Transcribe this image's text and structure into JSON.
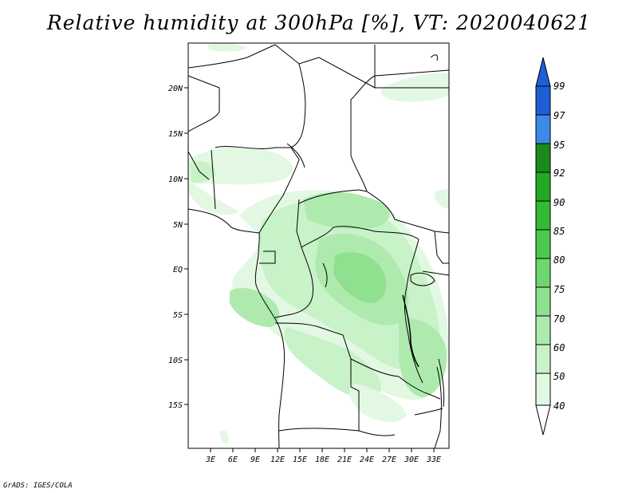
{
  "title": "Relative humidity at 300hPa [%], VT: 2020040621",
  "credit": "GrADS: IGES/COLA",
  "map": {
    "lat_labels": [
      "20N",
      "15N",
      "10N",
      "5N",
      "EQ",
      "5S",
      "10S",
      "15S"
    ],
    "lon_labels": [
      "3E",
      "6E",
      "9E",
      "12E",
      "15E",
      "18E",
      "21E",
      "24E",
      "27E",
      "30E",
      "33E"
    ]
  },
  "colorbar": {
    "levels": [
      "99",
      "97",
      "95",
      "92",
      "90",
      "85",
      "80",
      "75",
      "70",
      "60",
      "50",
      "40"
    ],
    "colors": {
      "99": "#1e5fd6",
      "97": "#3d8ae8",
      "95": "#1a8a1a",
      "92": "#22a822",
      "90": "#33bb33",
      "85": "#4cc94c",
      "80": "#6ed66e",
      "75": "#8fe08f",
      "70": "#aeeaae",
      "60": "#c8f2c8",
      "50": "#e2f8e2",
      "40": "#f4fdf4"
    }
  }
}
